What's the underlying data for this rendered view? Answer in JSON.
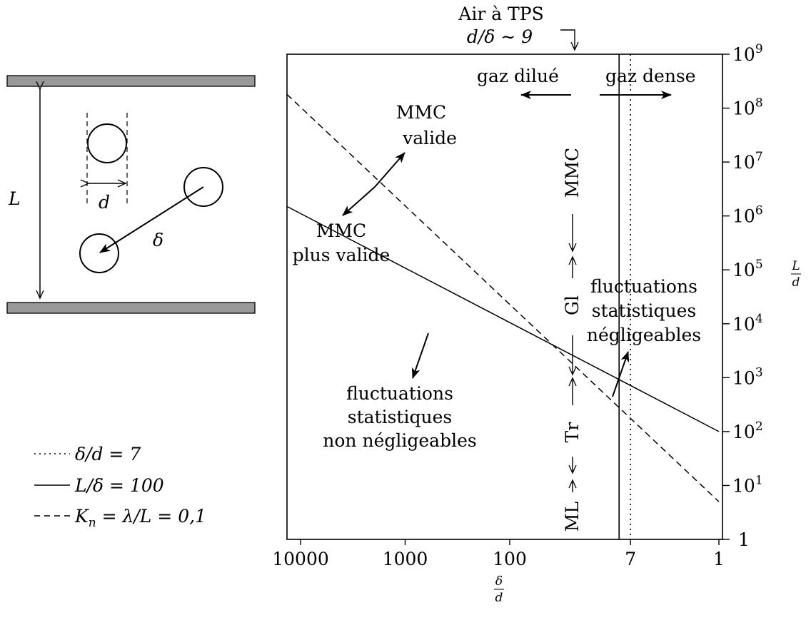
{
  "top_annotation": {
    "line1": "Air à TPS",
    "line2": "d/δ ∼ 9"
  },
  "schematic": {
    "L_label": "L",
    "d_label": "d",
    "delta_label": "δ"
  },
  "legend": [
    {
      "label": "δ/d = 7",
      "style": "dotted"
    },
    {
      "label": "L/δ = 100",
      "style": "solid"
    },
    {
      "label": "Kn = λ/L = 0,1",
      "style": "dashed",
      "lhs": "K",
      "sub": "n",
      "rhs": " = λ/L = 0,1"
    }
  ],
  "regions": {
    "gaz_dilue": "gaz dilué",
    "gaz_dense": "gaz dense",
    "mmc_valide": [
      "MMC",
      "valide"
    ],
    "mmc_plus_valide": [
      "MMC",
      "plus valide"
    ],
    "fluct_neg": [
      "fluctuations",
      "statistiques",
      "négligeables"
    ],
    "fluct_non_neg": [
      "fluctuations",
      "statistiques",
      "non négligeables"
    ]
  },
  "vertical_labels": {
    "mmc": "MMC",
    "gl": "Gl",
    "tr": "Tr",
    "ml": "ML"
  },
  "chart_data": {
    "type": "line",
    "xlabel": {
      "num": "δ",
      "den": "d"
    },
    "ylabel": {
      "num": "L",
      "den": "d"
    },
    "x_scale": "log-reversed",
    "y_scale": "log",
    "xlim": [
      15000,
      1
    ],
    "ylim": [
      1,
      1000000000
    ],
    "x_ticks": [
      {
        "value": 10000,
        "label": "10000"
      },
      {
        "value": 1000,
        "label": "1000"
      },
      {
        "value": 100,
        "label": "100"
      },
      {
        "value": 7,
        "label": "7"
      },
      {
        "value": 1,
        "label": "1"
      }
    ],
    "y_ticks": [
      {
        "value": 1,
        "base": "1",
        "exp": ""
      },
      {
        "value": 10,
        "base": "10",
        "exp": "1"
      },
      {
        "value": 100,
        "base": "10",
        "exp": "2"
      },
      {
        "value": 1000,
        "base": "10",
        "exp": "3"
      },
      {
        "value": 10000,
        "base": "10",
        "exp": "4"
      },
      {
        "value": 100000,
        "base": "10",
        "exp": "5"
      },
      {
        "value": 1000000,
        "base": "10",
        "exp": "6"
      },
      {
        "value": 10000000,
        "base": "10",
        "exp": "7"
      },
      {
        "value": 100000000,
        "base": "10",
        "exp": "8"
      },
      {
        "value": 1000000000,
        "base": "10",
        "exp": "9"
      }
    ],
    "series": [
      {
        "name": "L/δ = 100",
        "style": "solid",
        "x": [
          15000,
          1
        ],
        "y": [
          1500000,
          100
        ]
      },
      {
        "name": "Kn = λ/L = 0,1",
        "style": "dashed",
        "x": [
          15000,
          1
        ],
        "y": [
          180000000,
          5
        ]
      }
    ],
    "vlines": [
      {
        "x": 7,
        "style": "dotted"
      },
      {
        "x": 9,
        "style": "solid"
      }
    ]
  }
}
